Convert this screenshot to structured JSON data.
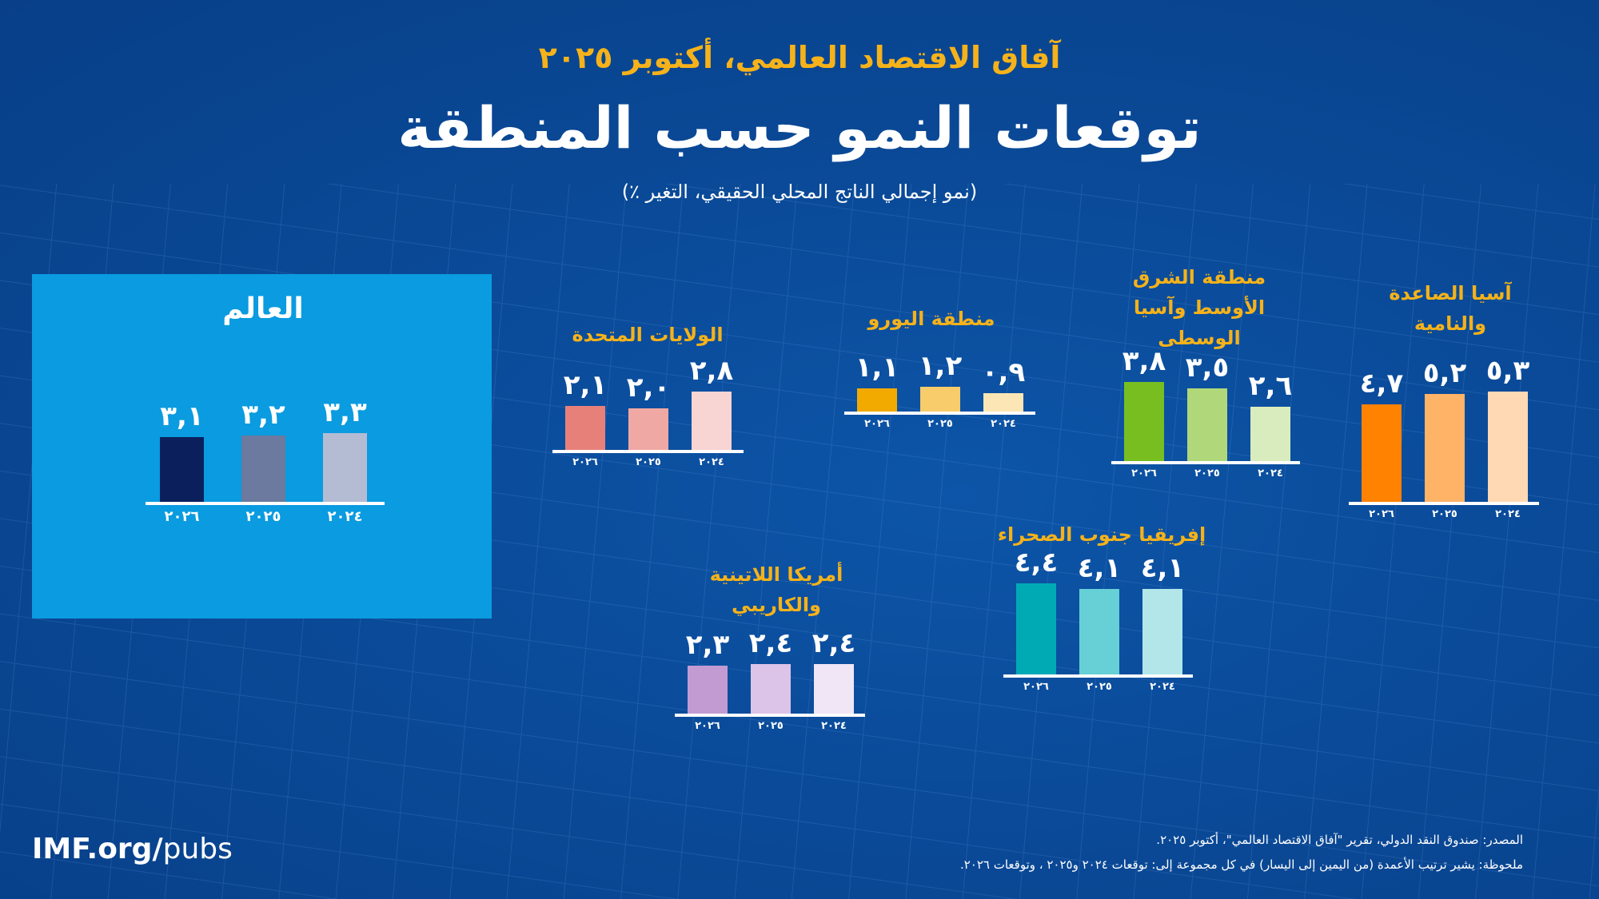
{
  "header": {
    "supertitle": "آفاق الاقتصاد العالمي، أكتوبر ٢٠٢٥",
    "title": "توقعات النمو حسب المنطقة",
    "subtitle": "(نمو إجمالي الناتج المحلي الحقيقي، التغير ٪)"
  },
  "chart_data": {
    "type": "bar",
    "years": [
      "٢٠٢٦",
      "٢٠٢٥",
      "٢٠٢٤"
    ],
    "groups": [
      {
        "name": "العالم",
        "values": [
          3.1,
          3.2,
          3.3
        ],
        "labels": [
          "٣,١",
          "٣,٢",
          "٣,٣"
        ],
        "colors": [
          "#0b1f5c",
          "#6b7a9e",
          "#b4bcd4"
        ]
      },
      {
        "name": "الولايات المتحدة",
        "values": [
          2.1,
          2.0,
          2.8
        ],
        "labels": [
          "٢,١",
          "٢,٠",
          "٢,٨"
        ],
        "colors": [
          "#e8807a",
          "#f0a8a4",
          "#f8d4d2"
        ]
      },
      {
        "name": "منطقة اليورو",
        "values": [
          1.1,
          1.2,
          0.9
        ],
        "labels": [
          "١,١",
          "١,٢",
          "٠,٩"
        ],
        "colors": [
          "#f2a900",
          "#f9cc6b",
          "#fde6b5"
        ]
      },
      {
        "name": "منطقة الشرق الأوسط وآسيا الوسطى",
        "values": [
          3.8,
          3.5,
          2.6
        ],
        "labels": [
          "٣,٨",
          "٣,٥",
          "٢,٦"
        ],
        "colors": [
          "#78be20",
          "#b0d87a",
          "#d9ecbd"
        ]
      },
      {
        "name": "آسيا الصاعدة والنامية",
        "values": [
          4.7,
          5.2,
          5.3
        ],
        "labels": [
          "٤,٧",
          "٥,٢",
          "٥,٣"
        ],
        "colors": [
          "#ff8200",
          "#ffb366",
          "#ffd9b3"
        ]
      },
      {
        "name": "إفريقيا جنوب الصحراء",
        "values": [
          4.4,
          4.1,
          4.1
        ],
        "labels": [
          "٤,٤",
          "٤,١",
          "٤,١"
        ],
        "colors": [
          "#00aab5",
          "#66d0d6",
          "#b2e6e9"
        ]
      },
      {
        "name": "أمريكا اللاتينية والكاريبي",
        "values": [
          2.3,
          2.4,
          2.4
        ],
        "labels": [
          "٢,٣",
          "٢,٤",
          "٢,٤"
        ],
        "colors": [
          "#c39bd3",
          "#dcc3e8",
          "#f1e6f6"
        ]
      }
    ]
  },
  "footer": {
    "imf_bold": "IMF.org/",
    "imf_rest": "pubs",
    "source": "المصدر: صندوق النقد الدولي، تقرير \"آفاق الاقتصاد العالمي\"، أكتوبر ٢٠٢٥.",
    "note": "ملحوظة: يشير ترتيب الأعمدة (من اليمين إلى اليسار) في كل مجموعة إلى: توقعات ٢٠٢٤ و٢٠٢٥ ، وتوقعات ٢٠٢٦."
  }
}
